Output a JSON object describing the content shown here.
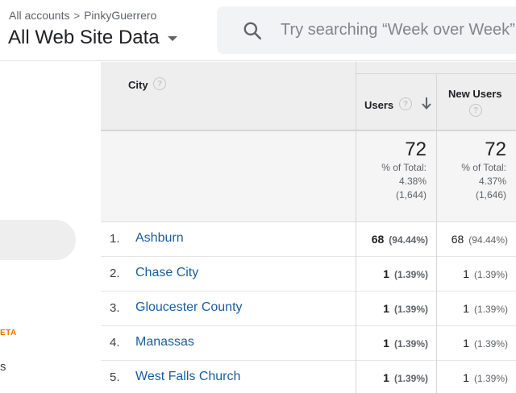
{
  "header": {
    "breadcrumb": {
      "accounts": "All accounts",
      "separator": ">",
      "account": "PinkyGuerrero"
    },
    "view_title": "All Web Site Data",
    "search": {
      "placeholder": "Try searching “Week over Week”",
      "icon": "search-icon"
    }
  },
  "sidebar": {
    "beta_label": "ETA",
    "partial_label": "s"
  },
  "table": {
    "columns": {
      "city": "City",
      "users": "Users",
      "new_users": "New Users",
      "help_glyph": "?"
    },
    "sort": {
      "column": "users",
      "direction": "descending",
      "icon": "arrow-down-icon"
    },
    "totals": {
      "users": {
        "value": "72",
        "pct_label": "% of Total:",
        "pct": "4.38%",
        "total": "(1,644)"
      },
      "new_users": {
        "value": "72",
        "pct_label": "% of Total:",
        "pct": "4.37%",
        "total": "(1,646)"
      }
    },
    "rows": [
      {
        "rank": "1.",
        "city": "Ashburn",
        "users": "68",
        "users_pct": "(94.44%)",
        "new_users": "68",
        "new_users_pct": "(94.44%)"
      },
      {
        "rank": "2.",
        "city": "Chase City",
        "users": "1",
        "users_pct": "(1.39%)",
        "new_users": "1",
        "new_users_pct": "(1.39%)"
      },
      {
        "rank": "3.",
        "city": "Gloucester County",
        "users": "1",
        "users_pct": "(1.39%)",
        "new_users": "1",
        "new_users_pct": "(1.39%)"
      },
      {
        "rank": "4.",
        "city": "Manassas",
        "users": "1",
        "users_pct": "(1.39%)",
        "new_users": "1",
        "new_users_pct": "(1.39%)"
      },
      {
        "rank": "5.",
        "city": "West Falls Church",
        "users": "1",
        "users_pct": "(1.39%)",
        "new_users": "1",
        "new_users_pct": "(1.39%)"
      }
    ]
  },
  "colors": {
    "link": "#1a5c9e",
    "beta": "#e37400",
    "header_bg": "#eeeeee",
    "summary_bg": "#f5f5f5"
  }
}
